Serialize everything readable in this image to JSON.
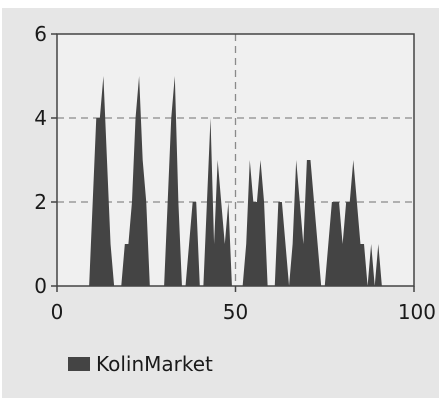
{
  "chart_data": {
    "type": "area",
    "title": "",
    "xlabel": "",
    "ylabel": "",
    "xlim": [
      0,
      100
    ],
    "ylim": [
      0,
      6
    ],
    "x_ticks": [
      "0",
      "50",
      "100"
    ],
    "y_ticks": [
      "0",
      "2",
      "4",
      "6"
    ],
    "grid": "dashed at y=2, y=4 and x=50",
    "legend_position": "bottom-left",
    "series": [
      {
        "name": "KolinMarket",
        "color": "#444444",
        "x": [
          9,
          10,
          11,
          12,
          13,
          14,
          15,
          16,
          17,
          18,
          19,
          20,
          21,
          22,
          23,
          24,
          25,
          26,
          27,
          28,
          29,
          30,
          31,
          32,
          33,
          34,
          35,
          36,
          37,
          38,
          39,
          40,
          41,
          42,
          43,
          44,
          45,
          46,
          47,
          48,
          49,
          50,
          51,
          52,
          53,
          54,
          55,
          56,
          57,
          58,
          59,
          60,
          61,
          62,
          63,
          64,
          65,
          66,
          67,
          68,
          69,
          70,
          71,
          72,
          73,
          74,
          75,
          76,
          77,
          78,
          79,
          80,
          81,
          82,
          83,
          84,
          85,
          86,
          87,
          88,
          89,
          90,
          91
        ],
        "y": [
          0,
          2,
          4,
          4,
          5,
          3,
          1,
          0,
          0,
          0,
          1,
          1,
          2,
          4,
          5,
          3,
          2,
          0,
          0,
          0,
          0,
          0,
          2,
          4,
          5,
          2,
          0,
          0,
          1,
          2,
          2,
          0,
          0,
          2,
          4,
          1,
          3,
          2,
          1,
          2,
          0,
          0,
          0,
          0,
          1,
          3,
          2,
          2,
          3,
          2,
          0,
          0,
          0,
          2,
          2,
          1,
          0,
          1,
          3,
          2,
          1,
          3,
          3,
          2,
          1,
          0,
          0,
          1,
          2,
          2,
          2,
          1,
          2,
          2,
          3,
          2,
          1,
          1,
          0,
          1,
          0,
          1,
          0
        ]
      }
    ]
  },
  "legend": {
    "label": "KolinMarket",
    "color": "#444444"
  },
  "style": {
    "background": "#e6e6e6",
    "plot_background": "#f0f0f0",
    "grid_color": "#8a8a8a"
  }
}
